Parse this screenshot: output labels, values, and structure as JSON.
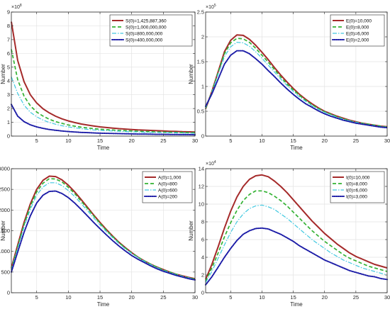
{
  "chart_data": [
    {
      "type": "line",
      "ylabel": "Number",
      "xlabel": "Time",
      "y_multiplier": {
        "base": "10",
        "exp": "8"
      },
      "xlim": [
        1,
        30
      ],
      "ylim": [
        0,
        9
      ],
      "xticks": [
        "5",
        "10",
        "15",
        "20",
        "25",
        "30"
      ],
      "yticks": [
        "0",
        "1",
        "2",
        "3",
        "4",
        "5",
        "6",
        "7",
        "8",
        "9"
      ],
      "grid": true,
      "legend_position": "top-right",
      "x": [
        1,
        2,
        3,
        4,
        5,
        6,
        7,
        8,
        9,
        10,
        11,
        12,
        13,
        14,
        15,
        16,
        17,
        18,
        19,
        20,
        21,
        22,
        23,
        24,
        25,
        26,
        27,
        28,
        29,
        30
      ],
      "series": [
        {
          "name": "S(0)=1,425,887,360",
          "color": "#a52a2a",
          "dash": "solid",
          "values": [
            8.3,
            5.5,
            3.95,
            3.0,
            2.4,
            1.98,
            1.68,
            1.44,
            1.25,
            1.1,
            0.98,
            0.88,
            0.8,
            0.73,
            0.67,
            0.62,
            0.58,
            0.54,
            0.51,
            0.48,
            0.45,
            0.43,
            0.41,
            0.39,
            0.37,
            0.35,
            0.34,
            0.32,
            0.31,
            0.3
          ]
        },
        {
          "name": "S(0)=1,000,000,000",
          "color": "#33b233",
          "dash": "dashed",
          "values": [
            6.3,
            4.1,
            2.9,
            2.2,
            1.75,
            1.45,
            1.22,
            1.05,
            0.92,
            0.81,
            0.72,
            0.65,
            0.59,
            0.54,
            0.5,
            0.47,
            0.44,
            0.41,
            0.39,
            0.37,
            0.35,
            0.33,
            0.32,
            0.3,
            0.29,
            0.28,
            0.27,
            0.26,
            0.25,
            0.24
          ]
        },
        {
          "name": "S(0)=800,000,000",
          "color": "#40c8e0",
          "dash": "dashdot",
          "values": [
            4.3,
            3.1,
            2.25,
            1.73,
            1.4,
            1.16,
            0.99,
            0.86,
            0.75,
            0.67,
            0.6,
            0.54,
            0.49,
            0.45,
            0.42,
            0.39,
            0.37,
            0.35,
            0.33,
            0.31,
            0.3,
            0.28,
            0.27,
            0.26,
            0.25,
            0.24,
            0.23,
            0.22,
            0.21,
            0.2
          ]
        },
        {
          "name": "S(0)=400,000,000",
          "color": "#1a1aa6",
          "dash": "dotted",
          "values": [
            2.3,
            1.45,
            1.05,
            0.82,
            0.67,
            0.56,
            0.48,
            0.42,
            0.37,
            0.33,
            0.3,
            0.27,
            0.25,
            0.23,
            0.21,
            0.2,
            0.19,
            0.18,
            0.17,
            0.16,
            0.15,
            0.15,
            0.14,
            0.13,
            0.13,
            0.12,
            0.12,
            0.11,
            0.11,
            0.1
          ]
        }
      ]
    },
    {
      "type": "line",
      "ylabel": "Number",
      "xlabel": "Time",
      "y_multiplier": {
        "base": "10",
        "exp": "5"
      },
      "xlim": [
        1,
        30
      ],
      "ylim": [
        0,
        2.5
      ],
      "xticks": [
        "5",
        "10",
        "15",
        "20",
        "25",
        "30"
      ],
      "yticks": [
        "0",
        "0.5",
        "1",
        "1.5",
        "2",
        "2.5"
      ],
      "grid": true,
      "legend_position": "top-right",
      "x": [
        1,
        2,
        3,
        4,
        5,
        6,
        7,
        8,
        9,
        10,
        11,
        12,
        13,
        14,
        15,
        16,
        17,
        18,
        19,
        20,
        21,
        22,
        23,
        24,
        25,
        26,
        27,
        28,
        29,
        30
      ],
      "series": [
        {
          "name": "E(0)=10,000",
          "color": "#a52a2a",
          "dash": "solid",
          "values": [
            0.55,
            0.9,
            1.3,
            1.7,
            1.93,
            2.04,
            2.03,
            1.95,
            1.83,
            1.69,
            1.54,
            1.38,
            1.23,
            1.09,
            0.96,
            0.84,
            0.74,
            0.65,
            0.57,
            0.5,
            0.45,
            0.4,
            0.36,
            0.32,
            0.29,
            0.26,
            0.24,
            0.22,
            0.2,
            0.19
          ]
        },
        {
          "name": "E(0)=8,000",
          "color": "#33b233",
          "dash": "dashed",
          "values": [
            0.56,
            0.89,
            1.28,
            1.66,
            1.88,
            1.97,
            1.96,
            1.89,
            1.77,
            1.63,
            1.49,
            1.34,
            1.19,
            1.05,
            0.93,
            0.82,
            0.72,
            0.63,
            0.56,
            0.49,
            0.44,
            0.39,
            0.35,
            0.31,
            0.28,
            0.26,
            0.24,
            0.22,
            0.2,
            0.18
          ]
        },
        {
          "name": "E(0)=6,000",
          "color": "#40c8e0",
          "dash": "dashdot",
          "values": [
            0.57,
            0.88,
            1.25,
            1.6,
            1.8,
            1.89,
            1.88,
            1.81,
            1.7,
            1.57,
            1.43,
            1.29,
            1.15,
            1.02,
            0.9,
            0.79,
            0.7,
            0.61,
            0.54,
            0.48,
            0.43,
            0.38,
            0.34,
            0.31,
            0.28,
            0.25,
            0.23,
            0.21,
            0.19,
            0.18
          ]
        },
        {
          "name": "E(0)=2,000",
          "color": "#1a1aa6",
          "dash": "dotted",
          "values": [
            0.6,
            0.85,
            1.15,
            1.45,
            1.63,
            1.72,
            1.72,
            1.66,
            1.56,
            1.45,
            1.32,
            1.2,
            1.07,
            0.95,
            0.84,
            0.74,
            0.65,
            0.58,
            0.51,
            0.45,
            0.4,
            0.36,
            0.32,
            0.29,
            0.26,
            0.24,
            0.22,
            0.2,
            0.18,
            0.17
          ]
        }
      ]
    },
    {
      "type": "line",
      "ylabel": "Number",
      "xlabel": "Time",
      "xlim": [
        1,
        30
      ],
      "ylim": [
        0,
        3000
      ],
      "xticks": [
        "5",
        "10",
        "15",
        "20",
        "25",
        "30"
      ],
      "yticks": [
        "0",
        "500",
        "1000",
        "1500",
        "2000",
        "2500",
        "3000"
      ],
      "grid": true,
      "legend_position": "top-right",
      "x": [
        1,
        2,
        3,
        4,
        5,
        6,
        7,
        8,
        9,
        10,
        11,
        12,
        13,
        14,
        15,
        16,
        17,
        18,
        19,
        20,
        21,
        22,
        23,
        24,
        25,
        26,
        27,
        28,
        29,
        30
      ],
      "series": [
        {
          "name": "A(0)=1,000",
          "color": "#a52a2a",
          "dash": "solid",
          "values": [
            600,
            1150,
            1700,
            2150,
            2500,
            2720,
            2820,
            2810,
            2730,
            2600,
            2440,
            2260,
            2070,
            1880,
            1700,
            1530,
            1370,
            1220,
            1090,
            970,
            860,
            770,
            690,
            620,
            560,
            500,
            450,
            410,
            370,
            340
          ]
        },
        {
          "name": "A(0)=800",
          "color": "#33b233",
          "dash": "dashed",
          "values": [
            570,
            1110,
            1650,
            2090,
            2440,
            2650,
            2760,
            2750,
            2680,
            2550,
            2400,
            2220,
            2040,
            1860,
            1680,
            1510,
            1360,
            1210,
            1080,
            960,
            860,
            770,
            690,
            620,
            550,
            500,
            450,
            400,
            360,
            330
          ]
        },
        {
          "name": "A(0)=600",
          "color": "#40c8e0",
          "dash": "dashdot",
          "values": [
            550,
            1070,
            1590,
            2020,
            2360,
            2560,
            2660,
            2660,
            2590,
            2470,
            2330,
            2160,
            1990,
            1810,
            1640,
            1480,
            1330,
            1190,
            1060,
            950,
            850,
            760,
            680,
            610,
            540,
            490,
            440,
            400,
            360,
            320
          ]
        },
        {
          "name": "A(0)=200",
          "color": "#1a1aa6",
          "dash": "dotted",
          "values": [
            500,
            980,
            1460,
            1860,
            2170,
            2360,
            2450,
            2460,
            2400,
            2300,
            2170,
            2020,
            1860,
            1700,
            1550,
            1400,
            1260,
            1130,
            1010,
            900,
            810,
            730,
            650,
            580,
            520,
            470,
            420,
            380,
            340,
            310
          ]
        }
      ]
    },
    {
      "type": "line",
      "ylabel": "Number",
      "xlabel": "Time",
      "y_multiplier": {
        "base": "10",
        "exp": "4"
      },
      "xlim": [
        1,
        30
      ],
      "ylim": [
        0,
        14
      ],
      "xticks": [
        "5",
        "10",
        "15",
        "20",
        "25",
        "30"
      ],
      "yticks": [
        "0",
        "2",
        "4",
        "6",
        "8",
        "10",
        "12",
        "14"
      ],
      "grid": true,
      "legend_position": "top-right",
      "x": [
        1,
        2,
        3,
        4,
        5,
        6,
        7,
        8,
        9,
        10,
        11,
        12,
        13,
        14,
        15,
        16,
        17,
        18,
        19,
        20,
        21,
        22,
        23,
        24,
        25,
        26,
        27,
        28,
        29,
        30
      ],
      "series": [
        {
          "name": "I(0)=10,000",
          "color": "#a52a2a",
          "dash": "solid",
          "values": [
            1.5,
            3.2,
            5.2,
            7.3,
            9.2,
            10.8,
            12.0,
            12.8,
            13.2,
            13.3,
            13.1,
            12.6,
            12.0,
            11.3,
            10.5,
            9.7,
            8.9,
            8.1,
            7.4,
            6.7,
            6.1,
            5.5,
            5.0,
            4.5,
            4.1,
            3.8,
            3.5,
            3.2,
            3.0,
            2.8
          ]
        },
        {
          "name": "I(0)=8,000",
          "color": "#33b233",
          "dash": "dashed",
          "values": [
            1.3,
            2.8,
            4.5,
            6.3,
            7.9,
            9.3,
            10.4,
            11.1,
            11.5,
            11.5,
            11.3,
            10.9,
            10.4,
            9.8,
            9.1,
            8.4,
            7.7,
            7.0,
            6.4,
            5.8,
            5.3,
            4.8,
            4.3,
            3.9,
            3.6,
            3.3,
            3.0,
            2.8,
            2.6,
            2.4
          ]
        },
        {
          "name": "I(0)=6,000",
          "color": "#40c8e0",
          "dash": "dashdot",
          "values": [
            1.15,
            2.4,
            3.9,
            5.4,
            6.8,
            8.0,
            8.9,
            9.5,
            9.8,
            9.9,
            9.7,
            9.4,
            8.9,
            8.4,
            7.8,
            7.2,
            6.6,
            6.0,
            5.5,
            5.0,
            4.5,
            4.1,
            3.7,
            3.4,
            3.1,
            2.8,
            2.6,
            2.4,
            2.2,
            2.0
          ]
        },
        {
          "name": "I(0)=3,000",
          "color": "#1a1aa6",
          "dash": "dotted",
          "values": [
            0.9,
            1.8,
            2.9,
            4.0,
            5.0,
            5.9,
            6.6,
            7.0,
            7.25,
            7.3,
            7.2,
            6.9,
            6.6,
            6.2,
            5.8,
            5.3,
            4.9,
            4.5,
            4.1,
            3.7,
            3.4,
            3.1,
            2.8,
            2.5,
            2.3,
            2.1,
            1.9,
            1.8,
            1.6,
            1.5
          ]
        }
      ]
    }
  ]
}
